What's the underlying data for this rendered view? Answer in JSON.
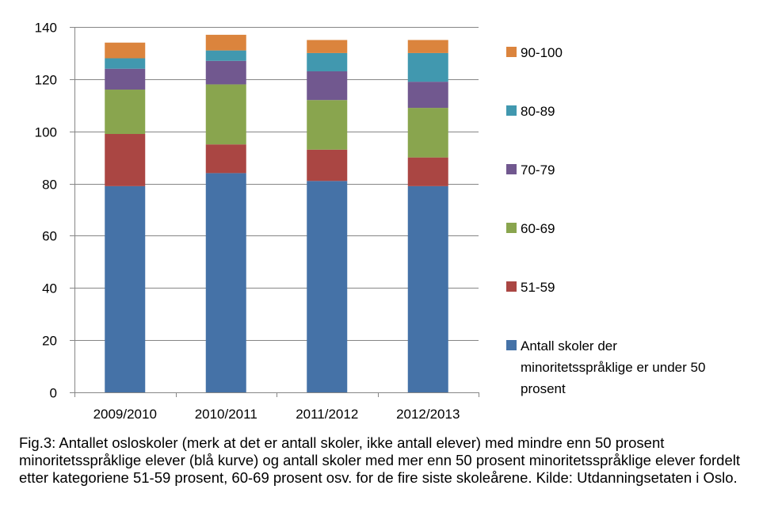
{
  "chart_data": {
    "type": "bar",
    "stacked": true,
    "categories": [
      "2009/2010",
      "2010/2011",
      "2011/2012",
      "2012/2013"
    ],
    "ylim": [
      0,
      140
    ],
    "yticks": [
      0,
      20,
      40,
      60,
      80,
      100,
      120,
      140
    ],
    "grid": true,
    "legend_position": "right",
    "series": [
      {
        "name": "Antall skoler der minoritetsspråklige er under 50 prosent",
        "legend_lines": [
          "Antall skoler der",
          "minoritetsspråklige  er under 50",
          "prosent"
        ],
        "color": "#4572A7",
        "values": [
          79,
          84,
          81,
          79
        ]
      },
      {
        "name": "51-59",
        "legend_lines": [
          "51-59"
        ],
        "color": "#AA4643",
        "values": [
          20,
          11,
          12,
          11
        ]
      },
      {
        "name": "60-69",
        "legend_lines": [
          "60-69"
        ],
        "color": "#89A54E",
        "values": [
          17,
          23,
          19,
          19
        ]
      },
      {
        "name": "70-79",
        "legend_lines": [
          "70-79"
        ],
        "color": "#71588F",
        "values": [
          8,
          9,
          11,
          10
        ]
      },
      {
        "name": "80-89",
        "legend_lines": [
          "80-89"
        ],
        "color": "#4198AF",
        "values": [
          4,
          4,
          7,
          11
        ]
      },
      {
        "name": "90-100",
        "legend_lines": [
          "90-100"
        ],
        "color": "#DB843D",
        "values": [
          6,
          6,
          5,
          5
        ]
      }
    ]
  },
  "caption": "Fig.3: Antallet osloskoler (merk at det er antall skoler, ikke antall elever) med mindre enn 50 prosent minoritetsspråklige elever (blå kurve) og antall skoler med mer enn 50 prosent minoritetsspråklige elever fordelt etter kategoriene 51-59 prosent, 60-69 prosent osv. for de fire siste skoleårene. Kilde: Utdanningsetaten i Oslo."
}
